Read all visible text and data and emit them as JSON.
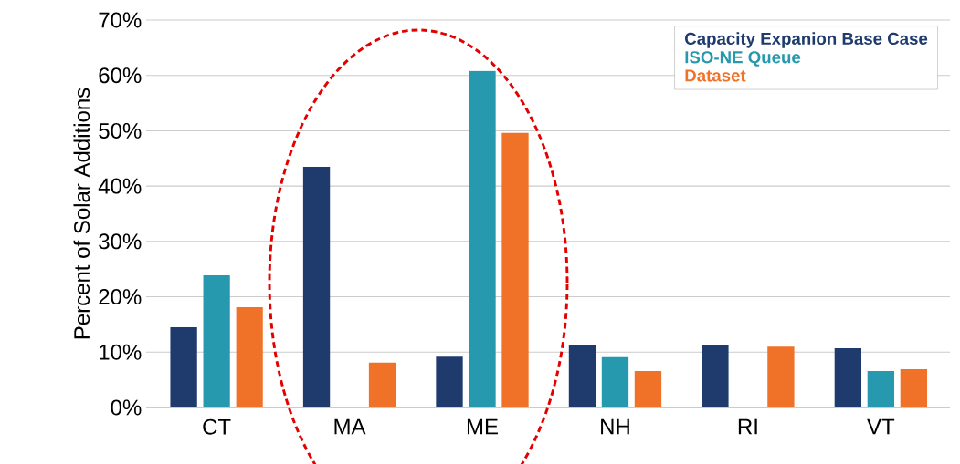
{
  "chart_data": {
    "type": "bar",
    "ylabel": "Percent of Solar Additions",
    "categories": [
      "CT",
      "MA",
      "ME",
      "NH",
      "RI",
      "VT"
    ],
    "series": [
      {
        "name": "Capacity Expanion Base Case",
        "color": "#1f3b6e",
        "values": [
          14.5,
          43.5,
          9.2,
          11.2,
          11.2,
          10.7
        ]
      },
      {
        "name": "ISO-NE Queue",
        "color": "#2699ae",
        "values": [
          23.9,
          null,
          60.8,
          9.1,
          null,
          6.6
        ]
      },
      {
        "name": "Dataset",
        "color": "#f07229",
        "values": [
          18.1,
          8.1,
          49.6,
          6.6,
          11.0,
          6.9
        ]
      }
    ],
    "ylim": [
      0,
      70
    ],
    "yticks": [
      {
        "value": 0,
        "label": "0%"
      },
      {
        "value": 10,
        "label": "10%"
      },
      {
        "value": 20,
        "label": "20%"
      },
      {
        "value": 30,
        "label": "30%"
      },
      {
        "value": 40,
        "label": "40%"
      },
      {
        "value": 50,
        "label": "50%"
      },
      {
        "value": 60,
        "label": "60%"
      },
      {
        "value": 70,
        "label": "70%"
      }
    ],
    "grid": "y",
    "legend": "top right"
  }
}
